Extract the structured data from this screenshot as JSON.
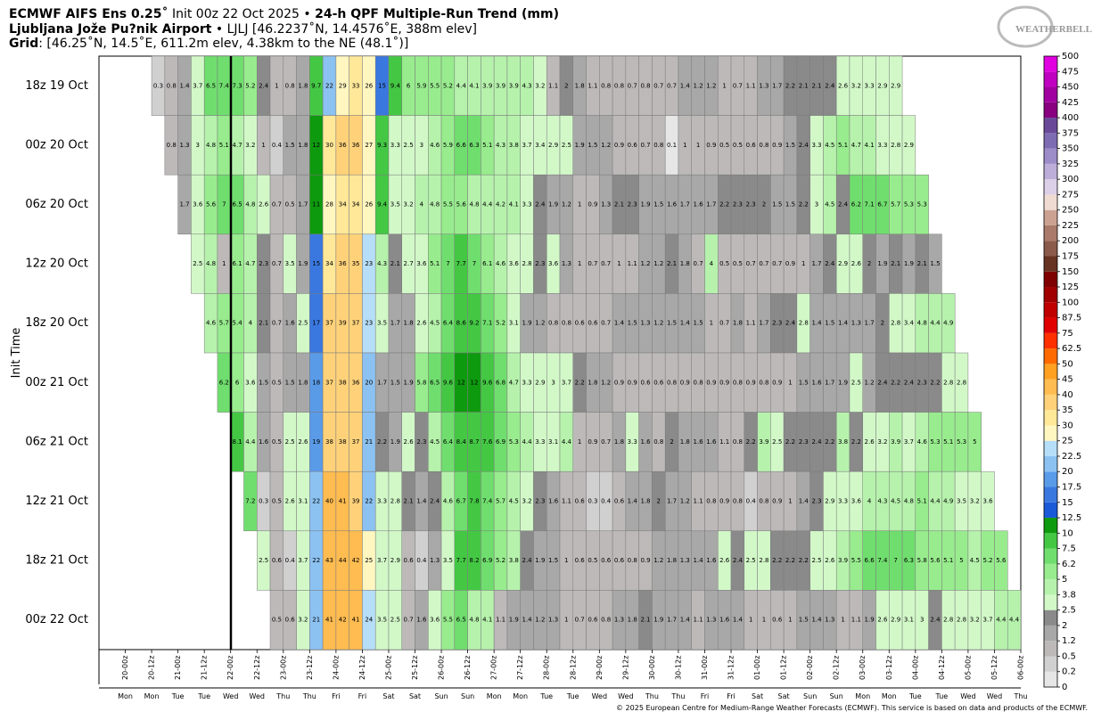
{
  "chart_data": {
    "type": "heatmap",
    "title": [
      "ECMWF AIFS Ens 0.25˚",
      " Init 00z 22 Oct 2025 • ",
      "24-h QPF Multiple-Run Trend (mm)"
    ],
    "subtitle": [
      "Ljubljana Jože Pu?nik Airport",
      " • LJLJ [46.2237˚N, 14.4576˚E, 388m elev]"
    ],
    "grid_info": [
      "Grid",
      ": [46.25˚N, 14.5˚E, 611.2m elev, 4.38km to the NE (48.1˚)]"
    ],
    "logo": "WEATHERBELL",
    "y_label": "Init Time",
    "copyright": "© 2025 European Centre for Medium-Range Weather Forecasts (ECMWF). This service is based on data and products of the ECMWF.",
    "xticks": [
      "20-00z",
      "20-12z",
      "21-00z",
      "21-12z",
      "22-00z",
      "22-12z",
      "23-00z",
      "23-12z",
      "24-00z",
      "24-12z",
      "25-00z",
      "25-12z",
      "26-00z",
      "26-12z",
      "27-00z",
      "27-12z",
      "28-00z",
      "28-12z",
      "29-00z",
      "29-12z",
      "30-00z",
      "30-12z",
      "31-00z",
      "31-12z",
      "01-00z",
      "01-12z",
      "02-00z",
      "02-12z",
      "03-00z",
      "03-12z",
      "04-00z",
      "04-12z",
      "05-00z",
      "05-12z",
      "06-00z"
    ],
    "days": [
      "Mon",
      "Mon",
      "Tue",
      "Tue",
      "Wed",
      "Wed",
      "Thu",
      "Thu",
      "Fri",
      "Fri",
      "Sat",
      "Sat",
      "Sun",
      "Sun",
      "Mon",
      "Mon",
      "Tue",
      "Tue",
      "Wed",
      "Wed",
      "Thu",
      "Thu",
      "Fri",
      "Fri",
      "Sat",
      "Sat",
      "Sun",
      "Sun",
      "Mon",
      "Mon",
      "Tue",
      "Tue",
      "Wed",
      "Wed",
      "Thu"
    ],
    "colorbar": {
      "levels": [
        0,
        0.2,
        0.5,
        1.2,
        2,
        2.5,
        3.8,
        5,
        6.2,
        7.5,
        10,
        12.5,
        15,
        17.5,
        20,
        22.5,
        25,
        30,
        35,
        40,
        45,
        50,
        62.5,
        75,
        87.5,
        100,
        125,
        150,
        175,
        200,
        225,
        250,
        275,
        300,
        325,
        350,
        375,
        400,
        425,
        450,
        475,
        500
      ],
      "colors": [
        "#e6e6e6",
        "#d0d0d0",
        "#bdb9b9",
        "#a8a8a8",
        "#8a8a8a",
        "#d2f8c8",
        "#b6f2ac",
        "#98ec8e",
        "#70de6e",
        "#44c844",
        "#0e9a0e",
        "#1a5ad8",
        "#3a78e0",
        "#5a9be8",
        "#8cc2f2",
        "#b6def8",
        "#fff6c0",
        "#ffe898",
        "#ffd27a",
        "#ffbc50",
        "#ffa020",
        "#ff6a00",
        "#ff3000",
        "#e00000",
        "#c00000",
        "#a00000",
        "#7e0000",
        "#663222",
        "#8a5a4a",
        "#aa7a6a",
        "#cba292",
        "#f0dbd2",
        "#dcd0e8",
        "#bcaed8",
        "#9c8cc8",
        "#7e6cb2",
        "#6a4a98",
        "#880080",
        "#a000a0",
        "#c000c0",
        "#e000e0"
      ]
    },
    "series": [
      {
        "name": "18z 19 Oct",
        "values": [
          null,
          null,
          null,
          null,
          0.3,
          0.8,
          1.4,
          3.7,
          6.5,
          7.4,
          7.3,
          5.2,
          2.4,
          1,
          0.8,
          1.8,
          9.7,
          22,
          29,
          33,
          26,
          15,
          9.4,
          6,
          5.9,
          5.5,
          5.2,
          4.4,
          4.1,
          3.9,
          3.9,
          3.9,
          4.3,
          3.2,
          1.1,
          2,
          1.8,
          1.1,
          0.8,
          0.8,
          0.7,
          0.8,
          0.7,
          0.7,
          1.4,
          1.2,
          1.2,
          1,
          0.7,
          1.1,
          1.3,
          1.7,
          2.2,
          2.1,
          2.1,
          2.4,
          2.6,
          3.2,
          3.3,
          2.9,
          2.9,
          null,
          null,
          null,
          null,
          null,
          null,
          null,
          null,
          null
        ]
      },
      {
        "name": "00z 20 Oct",
        "values": [
          null,
          null,
          null,
          null,
          null,
          0.8,
          1.3,
          3,
          4.8,
          5.1,
          4.7,
          3.2,
          1,
          0.4,
          1.5,
          1.8,
          12,
          30,
          36,
          36,
          27,
          9.3,
          3.3,
          2.5,
          3,
          4.6,
          5.9,
          6.6,
          6.3,
          5.1,
          4.3,
          3.8,
          3.7,
          3.4,
          2.9,
          2.5,
          1.9,
          1.5,
          1.2,
          0.9,
          0.6,
          0.7,
          0.8,
          0.1,
          1,
          1,
          0.9,
          0.5,
          0.5,
          0.6,
          0.8,
          0.9,
          1.5,
          2.4,
          3.3,
          4.5,
          5.1,
          4.7,
          4.1,
          3.3,
          2.8,
          2.9,
          null,
          null,
          null,
          null,
          null,
          null,
          null,
          null
        ]
      },
      {
        "name": "06z 20 Oct",
        "values": [
          null,
          null,
          null,
          null,
          null,
          null,
          1.7,
          3.6,
          5.6,
          7,
          6.5,
          4.8,
          2.6,
          0.7,
          0.5,
          1.7,
          11,
          28,
          34,
          34,
          26,
          9.4,
          3.5,
          3.2,
          4,
          4.8,
          5.5,
          5.6,
          4.8,
          4.4,
          4.2,
          4.1,
          3.3,
          2.4,
          1.9,
          1.2,
          1,
          0.9,
          1.3,
          2.1,
          2.3,
          1.9,
          1.5,
          1.6,
          1.7,
          1.6,
          1.7,
          2.2,
          2.3,
          2.3,
          2,
          1.5,
          1.5,
          2.2,
          3,
          4.5,
          2.4,
          6.2,
          7.1,
          6.7,
          5.7,
          5.3,
          5.3,
          null,
          null,
          null,
          null,
          null,
          null,
          null
        ]
      },
      {
        "name": "12z 20 Oct",
        "values": [
          null,
          null,
          null,
          null,
          null,
          null,
          null,
          2.5,
          4.8,
          1,
          6.1,
          4.7,
          2.3,
          0.7,
          3.5,
          1.9,
          15,
          34,
          36,
          35,
          23,
          4.3,
          2.1,
          2.7,
          3.6,
          5.1,
          7,
          7.7,
          7,
          6.1,
          4.6,
          3.6,
          2.8,
          2.3,
          3.6,
          1.3,
          1,
          0.7,
          0.7,
          1,
          1.1,
          1.2,
          1.2,
          2.1,
          1.8,
          0.7,
          4,
          0.5,
          0.5,
          0.7,
          0.7,
          0.7,
          0.9,
          1,
          1.7,
          2.4,
          2.9,
          2.6,
          2,
          1.9,
          2.1,
          1.9,
          2.1,
          1.5,
          null,
          null,
          null,
          null,
          null,
          null
        ]
      },
      {
        "name": "18z 20 Oct",
        "values": [
          null,
          null,
          null,
          null,
          null,
          null,
          null,
          null,
          4.6,
          5.7,
          5.4,
          4,
          2.1,
          0.7,
          1.6,
          2.5,
          17,
          37,
          39,
          37,
          23,
          3.5,
          1.7,
          1.8,
          2.6,
          4.5,
          6.4,
          8.6,
          9.2,
          7.1,
          5.2,
          3.1,
          1.9,
          1.2,
          0.8,
          0.8,
          0.6,
          0.6,
          0.7,
          1.4,
          1.5,
          1.3,
          1.2,
          1.5,
          1.4,
          1.5,
          1,
          0.7,
          1.8,
          1.1,
          1.7,
          2.3,
          2.4,
          2.8,
          1.4,
          1.5,
          1.4,
          1.3,
          1.7,
          2,
          2.8,
          3.4,
          4.8,
          4.4,
          4.9,
          null,
          null,
          null,
          null,
          null
        ]
      },
      {
        "name": "00z 21 Oct",
        "values": [
          null,
          null,
          null,
          null,
          null,
          null,
          null,
          null,
          null,
          6.2,
          6,
          3.6,
          1.5,
          0.5,
          1.5,
          1.8,
          18,
          37,
          38,
          36,
          20,
          1.7,
          1.5,
          1.9,
          5.8,
          6.5,
          9.6,
          12,
          12,
          9.6,
          6.8,
          4.7,
          3.3,
          2.9,
          3,
          3.7,
          2.2,
          1.8,
          1.2,
          0.9,
          0.9,
          0.6,
          0.6,
          0.8,
          0.9,
          0.8,
          0.9,
          0.9,
          0.8,
          0.9,
          0.8,
          0.9,
          1,
          1.5,
          1.6,
          1.7,
          1.9,
          2.5,
          1.2,
          2.4,
          2.2,
          2.4,
          2.3,
          2.2,
          2.8,
          2.8,
          null,
          null,
          null,
          null
        ]
      },
      {
        "name": "06z 21 Oct",
        "values": [
          null,
          null,
          null,
          null,
          null,
          null,
          null,
          null,
          null,
          null,
          8.1,
          4.4,
          1.6,
          0.5,
          2.5,
          2.6,
          19,
          38,
          38,
          37,
          21,
          2.2,
          1.9,
          2.6,
          2.3,
          4.5,
          6.4,
          8.4,
          8.7,
          7.6,
          6.9,
          5.3,
          4.4,
          3.3,
          3.1,
          4.4,
          1,
          0.9,
          0.7,
          1.8,
          3.3,
          1.6,
          0.8,
          2,
          1.8,
          1.6,
          1.6,
          1.1,
          0.8,
          2.2,
          3.9,
          2.5,
          2.2,
          2.3,
          2.4,
          2.2,
          3.8,
          2.2,
          2.6,
          3.2,
          3.9,
          3.7,
          4.6,
          5.3,
          5.1,
          5.3,
          5,
          null,
          null,
          null
        ]
      },
      {
        "name": "12z 21 Oct",
        "values": [
          null,
          null,
          null,
          null,
          null,
          null,
          null,
          null,
          null,
          null,
          null,
          7.2,
          0.3,
          0.5,
          2.6,
          3.1,
          22,
          40,
          41,
          39,
          22,
          3.3,
          2.8,
          2.1,
          1.4,
          2.4,
          4.6,
          6.7,
          7.8,
          7.4,
          5.7,
          4.5,
          3.2,
          2.3,
          1.6,
          1.1,
          0.6,
          0.3,
          0.4,
          0.6,
          1.4,
          1.8,
          2,
          1.7,
          1.2,
          1.1,
          0.8,
          0.9,
          0.8,
          0.4,
          0.8,
          0.9,
          1,
          1.4,
          2.3,
          2.9,
          3.3,
          3.6,
          4,
          4.3,
          4.5,
          4.8,
          5.1,
          4.4,
          4.9,
          3.5,
          3.2,
          3.6,
          null,
          null
        ]
      },
      {
        "name": "18z 21 Oct",
        "values": [
          null,
          null,
          null,
          null,
          null,
          null,
          null,
          null,
          null,
          null,
          null,
          null,
          2.5,
          0.6,
          0.4,
          3.7,
          22,
          43,
          44,
          42,
          25,
          3.7,
          2.9,
          0.6,
          0.4,
          1.3,
          3.5,
          7.7,
          8.2,
          6.9,
          5.2,
          3.8,
          2.4,
          1.9,
          1.5,
          1,
          0.6,
          0.5,
          0.6,
          0.6,
          0.8,
          0.9,
          1.2,
          1.8,
          1.3,
          1.4,
          1.6,
          2.6,
          2.4,
          2.5,
          2.8,
          2.2,
          2.2,
          2.2,
          2.5,
          2.6,
          3.9,
          5.5,
          6.6,
          7.4,
          7,
          6.3,
          5.8,
          5.6,
          5.1,
          5,
          4.5,
          5.2,
          5.6,
          null
        ]
      },
      {
        "name": "00z 22 Oct",
        "values": [
          null,
          null,
          null,
          null,
          null,
          null,
          null,
          null,
          null,
          null,
          null,
          null,
          null,
          0.5,
          0.6,
          3.2,
          21,
          41,
          42,
          41,
          24,
          3.5,
          2.5,
          0.7,
          1.6,
          3.6,
          5.5,
          6.5,
          4.8,
          4.1,
          1.1,
          1.9,
          1.4,
          1.2,
          1.3,
          1,
          0.7,
          0.6,
          0.8,
          1.3,
          1.8,
          2.1,
          1.9,
          1.7,
          1.4,
          1.1,
          1.3,
          1.6,
          1.4,
          1,
          1,
          0.6,
          1,
          1.5,
          1.4,
          1.3,
          1,
          1.1,
          1.9,
          2.6,
          2.9,
          3.1,
          3,
          2.4,
          2.8,
          2.8,
          3.2,
          3.7,
          4.4,
          4.4
        ]
      }
    ]
  }
}
